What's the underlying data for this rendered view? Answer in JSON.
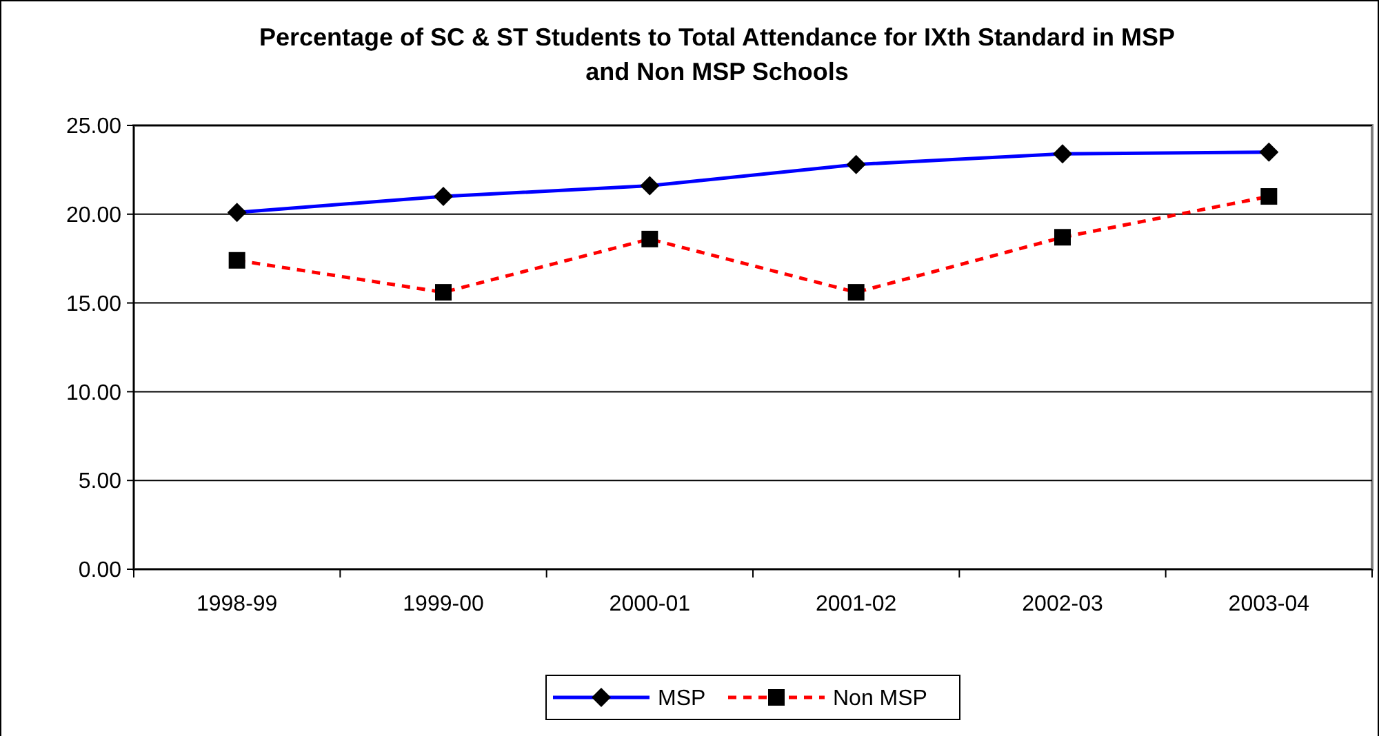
{
  "chart_data": {
    "type": "line",
    "title": "Percentage of SC & ST Students to Total Attendance for IXth Standard in MSP and Non MSP Schools",
    "categories": [
      "1998-99",
      "1999-00",
      "2000-01",
      "2001-02",
      "2002-03",
      "2003-04"
    ],
    "series": [
      {
        "name": "MSP",
        "color": "#0000ff",
        "values": [
          20.1,
          21.0,
          21.6,
          22.8,
          23.4,
          23.5
        ],
        "marker": "diamond",
        "line_style": "solid"
      },
      {
        "name": "Non MSP",
        "color": "#ff0000",
        "values": [
          17.4,
          15.6,
          18.6,
          15.6,
          18.7,
          21.0
        ],
        "marker": "square",
        "line_style": "dashed"
      }
    ],
    "ylim": [
      0,
      25
    ],
    "yticks": [
      {
        "value": 0,
        "label": "0.00"
      },
      {
        "value": 5,
        "label": "5.00"
      },
      {
        "value": 10,
        "label": "10.00"
      },
      {
        "value": 15,
        "label": "15.00"
      },
      {
        "value": 20,
        "label": "20.00"
      },
      {
        "value": 25,
        "label": "25.00"
      }
    ],
    "grid": "y",
    "legend": "bottom"
  }
}
